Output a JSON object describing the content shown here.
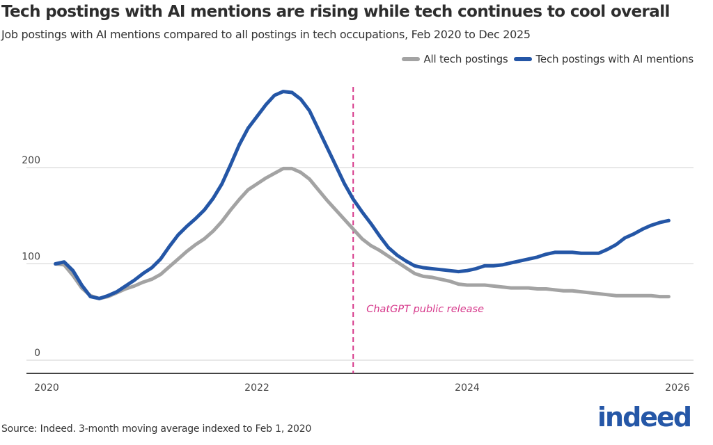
{
  "header": {
    "title": "Tech postings with AI mentions are rising while tech continues to cool overall",
    "subtitle": "Job postings with AI mentions compared to all postings in tech occupations, Feb 2020 to Dec 2025"
  },
  "footer": {
    "source": "Source: Indeed. 3-month moving average indexed to Feb 1, 2020",
    "logo": "indeed"
  },
  "chart_data": {
    "type": "line",
    "title": "Tech postings with AI mentions are rising while tech continues to cool overall",
    "xlabel": "",
    "ylabel": "",
    "x_start": "2020-02",
    "x_step": "month",
    "xticks": [
      "2020",
      "2022",
      "2024",
      "2026"
    ],
    "yticks": [
      "0",
      "100",
      "200"
    ],
    "ylim": [
      0,
      284
    ],
    "grid": "horizontal",
    "legend": "top-right",
    "colors": {
      "all": "#a3a3a3",
      "ai": "#2456a6",
      "annotation": "#d6378a"
    },
    "annotation": {
      "label": "ChatGPT public release",
      "date": "2022-11-30"
    },
    "series": [
      {
        "name": "All tech postings",
        "key": "all",
        "values": [
          100,
          99,
          88,
          75,
          67,
          64,
          66,
          70,
          74,
          77,
          81,
          84,
          89,
          97,
          105,
          113,
          120,
          126,
          134,
          144,
          156,
          167,
          177,
          183,
          189,
          194,
          199,
          199,
          195,
          188,
          177,
          166,
          156,
          146,
          136,
          126,
          119,
          114,
          108,
          102,
          96,
          90,
          87,
          86,
          84,
          82,
          79,
          78,
          78,
          78,
          77,
          76,
          75,
          75,
          75,
          74,
          74,
          73,
          72,
          72,
          71,
          70,
          69,
          68,
          67,
          67,
          67,
          67,
          67,
          66,
          66
        ]
      },
      {
        "name": "Tech postings with AI mentions",
        "key": "ai",
        "values": [
          100,
          102,
          93,
          78,
          66,
          64,
          67,
          71,
          77,
          83,
          90,
          96,
          105,
          118,
          130,
          139,
          147,
          156,
          168,
          183,
          203,
          224,
          241,
          253,
          265,
          275,
          279,
          278,
          271,
          259,
          240,
          221,
          202,
          183,
          167,
          154,
          142,
          129,
          117,
          109,
          103,
          98,
          96,
          95,
          94,
          93,
          92,
          93,
          95,
          98,
          98,
          99,
          101,
          103,
          105,
          107,
          110,
          112,
          112,
          112,
          111,
          111,
          111,
          115,
          120,
          127,
          131,
          136,
          140,
          143,
          145
        ]
      }
    ]
  }
}
